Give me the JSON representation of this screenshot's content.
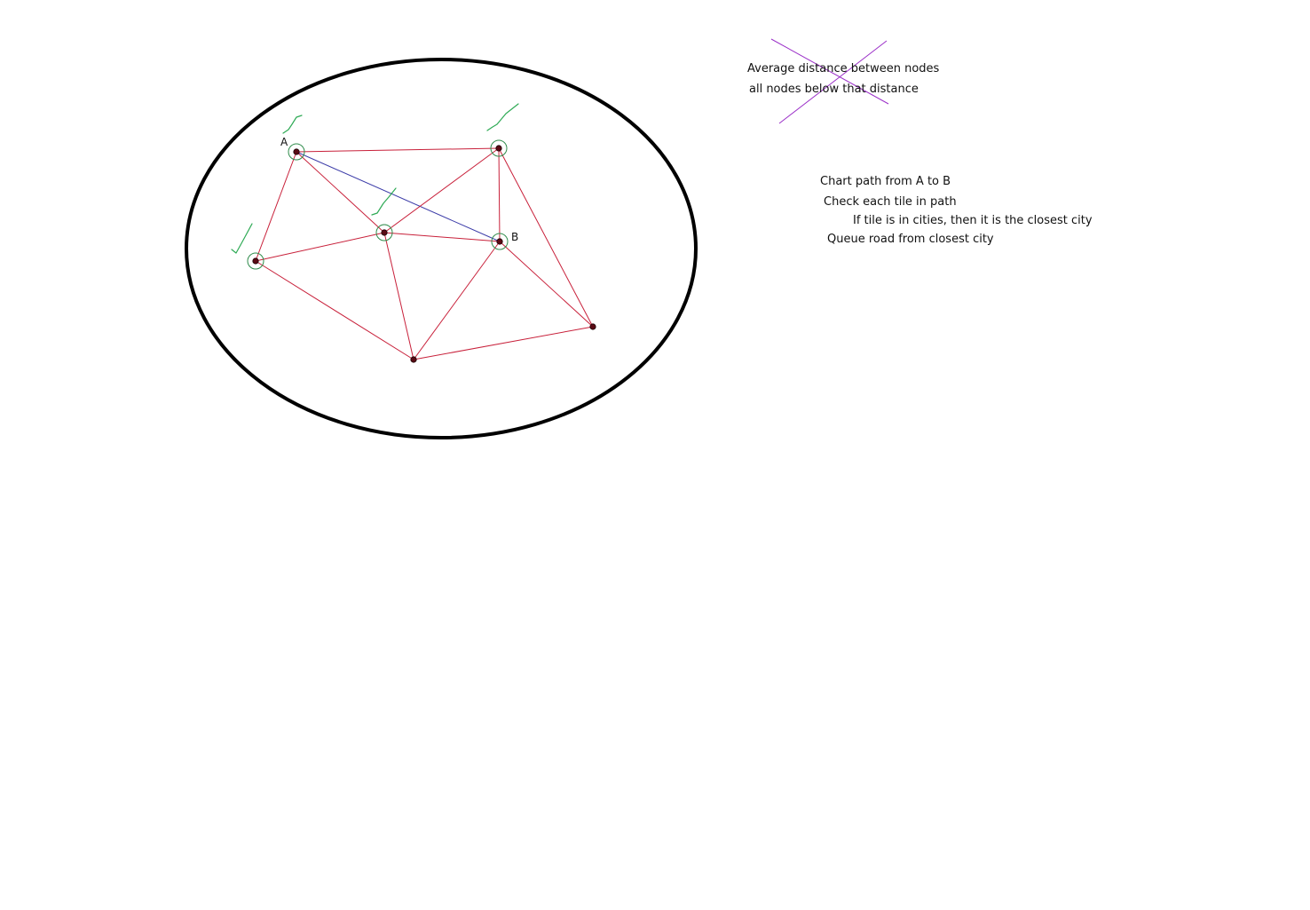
{
  "nodes": [
    {
      "id": "a",
      "label": "A",
      "selected": true,
      "checked": true
    },
    {
      "id": "top-right",
      "label": "",
      "selected": true,
      "checked": true
    },
    {
      "id": "center",
      "label": "",
      "selected": true,
      "checked": true
    },
    {
      "id": "b",
      "label": "B",
      "selected": true,
      "checked": false
    },
    {
      "id": "left",
      "label": "",
      "selected": true,
      "checked": true
    },
    {
      "id": "bottom",
      "label": "",
      "selected": false,
      "checked": false
    },
    {
      "id": "right",
      "label": "",
      "selected": false,
      "checked": false
    }
  ],
  "edges": [
    {
      "from": "a",
      "to": "top-right",
      "kind": "road"
    },
    {
      "from": "a",
      "to": "left",
      "kind": "road"
    },
    {
      "from": "a",
      "to": "center",
      "kind": "road"
    },
    {
      "from": "a",
      "to": "b",
      "kind": "path"
    },
    {
      "from": "top-right",
      "to": "center",
      "kind": "road"
    },
    {
      "from": "top-right",
      "to": "b",
      "kind": "road"
    },
    {
      "from": "top-right",
      "to": "right",
      "kind": "road"
    },
    {
      "from": "center",
      "to": "b",
      "kind": "road"
    },
    {
      "from": "center",
      "to": "left",
      "kind": "road"
    },
    {
      "from": "center",
      "to": "bottom",
      "kind": "road"
    },
    {
      "from": "b",
      "to": "bottom",
      "kind": "road"
    },
    {
      "from": "b",
      "to": "right",
      "kind": "road"
    },
    {
      "from": "left",
      "to": "bottom",
      "kind": "road"
    },
    {
      "from": "bottom",
      "to": "right",
      "kind": "road"
    }
  ],
  "notes": {
    "struck": {
      "line1": "Average distance between nodes",
      "line2": "all nodes below that distance"
    },
    "algorithm": {
      "line1": "Chart path from A to B",
      "line2": "Check each tile in path",
      "line3": "If tile is in cities, then it is the closest city",
      "line4": "Queue road from closest city"
    }
  },
  "colors": {
    "boundary": "#000000",
    "road": "#c8203a",
    "path": "#3c3ca8",
    "node": "#5a0a14",
    "selection": "#2e8b4a",
    "check": "#2eaa55",
    "strike": "#9b30c8"
  }
}
